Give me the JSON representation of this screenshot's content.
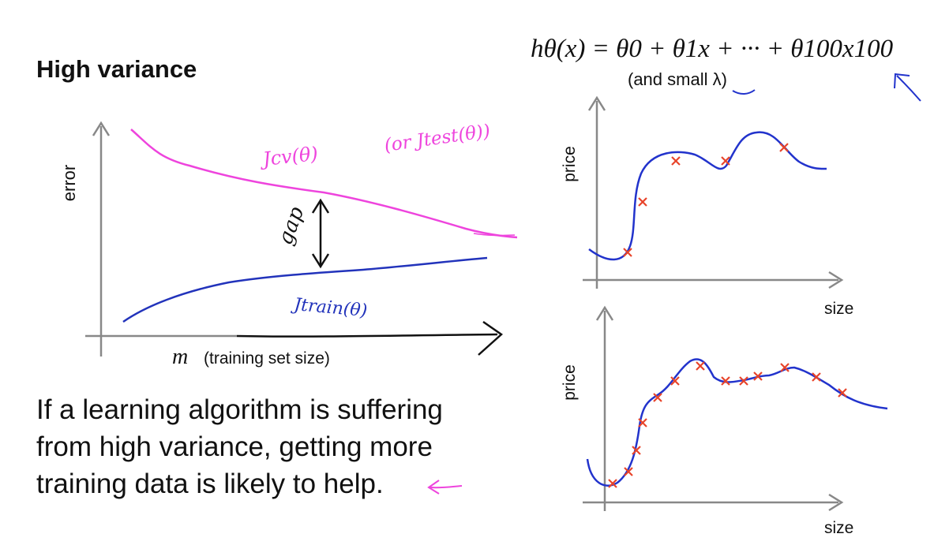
{
  "slide": {
    "title": "High variance"
  },
  "formula": {
    "hypothesis": "hθ(x) = θ0 + θ1x + ··· + θ100x100",
    "note": "(and small λ)"
  },
  "learning_curve": {
    "y_axis_label": "error",
    "x_axis_symbol": "m",
    "x_axis_label": "(training set size)",
    "curve_cv_label": "Jcv(θ)",
    "curve_test_label": "(or Jtest(θ))",
    "curve_train_label": "Jtrain(θ)",
    "gap_label": "gap"
  },
  "explanation": {
    "line1": "If a learning algorithm is suffering",
    "line2": "from high variance, getting more",
    "line3": "training data is likely to help."
  },
  "plot_small_data": {
    "y_axis_label": "price",
    "x_axis_label": "size"
  },
  "plot_large_data": {
    "y_axis_label": "price",
    "x_axis_label": "size"
  },
  "colors": {
    "cv_curve": "#ee44dd",
    "train_curve": "#2233bb",
    "fit_curve": "#2233cc",
    "data_marker": "#e8442a",
    "axis": "#888888"
  }
}
